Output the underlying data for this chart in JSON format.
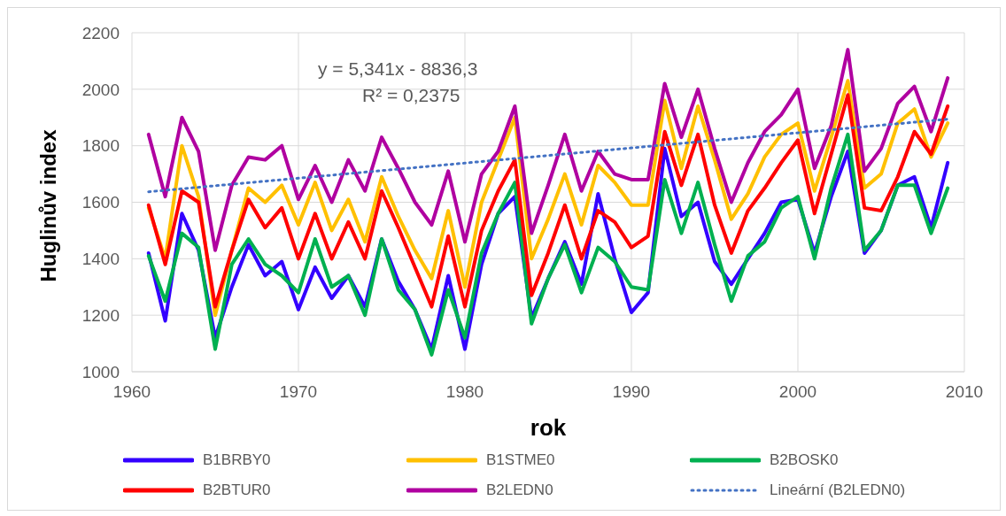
{
  "chart_data": {
    "type": "line",
    "xlabel": "rok",
    "ylabel": "Huglinův index",
    "x": [
      1961,
      1962,
      1963,
      1964,
      1965,
      1966,
      1967,
      1968,
      1969,
      1970,
      1971,
      1972,
      1973,
      1974,
      1975,
      1976,
      1977,
      1978,
      1979,
      1980,
      1981,
      1982,
      1983,
      1984,
      1985,
      1986,
      1987,
      1988,
      1989,
      1990,
      1991,
      1992,
      1993,
      1994,
      1995,
      1996,
      1997,
      1998,
      1999,
      2000,
      2001,
      2002,
      2003,
      2004,
      2005,
      2006,
      2007,
      2008,
      2009
    ],
    "series": [
      {
        "name": "B1BRBY0",
        "color": "#3300ff",
        "values": [
          1420,
          1180,
          1560,
          1430,
          1120,
          1300,
          1450,
          1340,
          1390,
          1220,
          1370,
          1260,
          1340,
          1230,
          1470,
          1320,
          1220,
          1080,
          1340,
          1080,
          1380,
          1560,
          1620,
          1190,
          1330,
          1460,
          1310,
          1630,
          1400,
          1210,
          1280,
          1790,
          1550,
          1600,
          1390,
          1310,
          1400,
          1490,
          1600,
          1610,
          1420,
          1620,
          1780,
          1420,
          1500,
          1660,
          1690,
          1510,
          1740
        ]
      },
      {
        "name": "B1STME0",
        "color": "#ffc000",
        "values": [
          1580,
          1400,
          1800,
          1620,
          1200,
          1430,
          1650,
          1600,
          1660,
          1520,
          1670,
          1500,
          1610,
          1460,
          1690,
          1550,
          1430,
          1330,
          1570,
          1300,
          1600,
          1750,
          1900,
          1400,
          1540,
          1700,
          1520,
          1730,
          1670,
          1590,
          1590,
          1960,
          1720,
          1940,
          1750,
          1540,
          1630,
          1760,
          1840,
          1880,
          1640,
          1830,
          2030,
          1650,
          1700,
          1880,
          1930,
          1760,
          1880
        ]
      },
      {
        "name": "B2BOSK0",
        "color": "#00b050",
        "values": [
          1410,
          1250,
          1490,
          1440,
          1080,
          1380,
          1470,
          1380,
          1340,
          1280,
          1470,
          1300,
          1340,
          1200,
          1470,
          1290,
          1220,
          1060,
          1290,
          1120,
          1420,
          1560,
          1670,
          1170,
          1330,
          1450,
          1280,
          1440,
          1390,
          1300,
          1290,
          1680,
          1490,
          1670,
          1450,
          1250,
          1410,
          1460,
          1580,
          1620,
          1400,
          1650,
          1840,
          1430,
          1500,
          1660,
          1660,
          1490,
          1650
        ]
      },
      {
        "name": "B2BTUR0",
        "color": "#ff0000",
        "values": [
          1590,
          1380,
          1640,
          1600,
          1230,
          1430,
          1610,
          1510,
          1580,
          1400,
          1560,
          1400,
          1530,
          1400,
          1640,
          1510,
          1370,
          1230,
          1480,
          1230,
          1500,
          1640,
          1750,
          1270,
          1420,
          1590,
          1400,
          1570,
          1530,
          1440,
          1480,
          1850,
          1660,
          1840,
          1590,
          1420,
          1570,
          1650,
          1740,
          1820,
          1560,
          1770,
          1980,
          1580,
          1570,
          1690,
          1850,
          1770,
          1940
        ]
      },
      {
        "name": "B2LEDN0",
        "color": "#b000a0",
        "values": [
          1840,
          1620,
          1900,
          1780,
          1430,
          1660,
          1760,
          1750,
          1800,
          1610,
          1730,
          1600,
          1750,
          1640,
          1830,
          1720,
          1600,
          1520,
          1710,
          1460,
          1700,
          1780,
          1940,
          1490,
          1660,
          1840,
          1640,
          1780,
          1700,
          1680,
          1680,
          2020,
          1830,
          2000,
          1790,
          1600,
          1740,
          1850,
          1910,
          2000,
          1720,
          1870,
          2140,
          1710,
          1790,
          1950,
          2010,
          1850,
          2040
        ]
      },
      {
        "name": "Lineární (B2LEDN0)",
        "color": "#4472c4",
        "line_style": "dotted",
        "x": [
          1961,
          2009
        ],
        "values": [
          1637,
          1894
        ]
      }
    ],
    "annotations": [
      "y = 5,341x - 8836,3",
      "R² = 0,2375"
    ],
    "xlim": [
      1960,
      2010
    ],
    "xticks": [
      1960,
      1970,
      1980,
      1990,
      2000,
      2010
    ],
    "ylim": [
      1000,
      2200
    ],
    "yticks": [
      1000,
      1200,
      1400,
      1600,
      1800,
      2000,
      2200
    ],
    "grid": true,
    "legend": "bottom",
    "marker": "none",
    "line_style": "solid"
  }
}
